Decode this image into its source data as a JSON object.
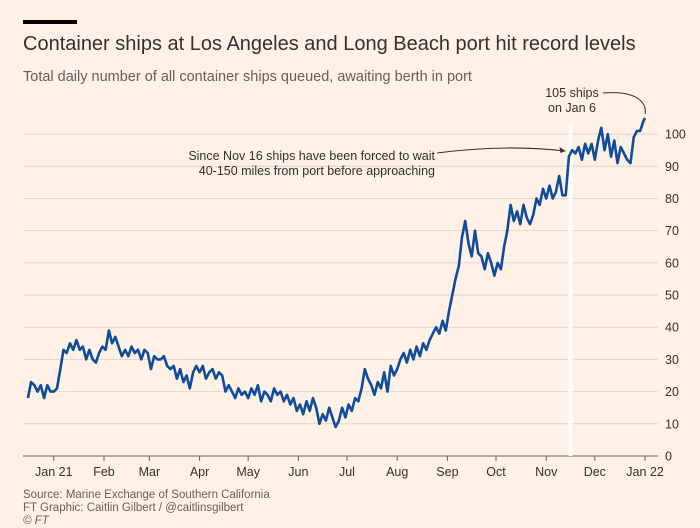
{
  "header": {
    "title": "Container ships at Los Angeles and Long Beach port hit record levels",
    "subtitle": "Total daily number of all container ships queued, awaiting berth in port"
  },
  "footer": {
    "source": "Source: Marine Exchange of Southern California",
    "graphic": "FT Graphic: Caitlin Gilbert / @caitlinsgilbert",
    "copyright": "© FT"
  },
  "colors": {
    "background": "#fff1e5",
    "line": "#0f4c9a",
    "grid": "#e0d6cc",
    "marker": "#ffffff"
  },
  "chart_data": {
    "type": "line",
    "title": "Container ships at Los Angeles and Long Beach port hit record levels",
    "subtitle": "Total daily number of all container ships queued, awaiting berth in port",
    "xlabel": "",
    "ylabel": "",
    "ylim": [
      0,
      105
    ],
    "xlim": [
      -19,
      373
    ],
    "yticks": [
      0,
      10,
      20,
      30,
      40,
      50,
      60,
      70,
      80,
      90,
      100
    ],
    "xticks": [
      {
        "label": "Jan 21",
        "day": 0
      },
      {
        "label": "Feb",
        "day": 31
      },
      {
        "label": "Mar",
        "day": 59
      },
      {
        "label": "Apr",
        "day": 90
      },
      {
        "label": "May",
        "day": 120
      },
      {
        "label": "Jun",
        "day": 151
      },
      {
        "label": "Jul",
        "day": 181
      },
      {
        "label": "Aug",
        "day": 212
      },
      {
        "label": "Sep",
        "day": 243
      },
      {
        "label": "Oct",
        "day": 273
      },
      {
        "label": "Nov",
        "day": 304
      },
      {
        "label": "Dec",
        "day": 334
      },
      {
        "label": "Jan 22",
        "day": 365
      }
    ],
    "grid": true,
    "marker_line_day": 319,
    "series": [
      {
        "name": "Container ships queued",
        "x_unit": "days since 2021-01-01",
        "points": [
          [
            -16,
            18
          ],
          [
            -14,
            23
          ],
          [
            -12,
            22
          ],
          [
            -10,
            20
          ],
          [
            -8,
            22
          ],
          [
            -6,
            18
          ],
          [
            -4,
            22
          ],
          [
            -2,
            20
          ],
          [
            0,
            20
          ],
          [
            2,
            21
          ],
          [
            4,
            27
          ],
          [
            6,
            33
          ],
          [
            8,
            32
          ],
          [
            10,
            35
          ],
          [
            12,
            33
          ],
          [
            14,
            36
          ],
          [
            16,
            33
          ],
          [
            18,
            34
          ],
          [
            20,
            30
          ],
          [
            22,
            33
          ],
          [
            24,
            30
          ],
          [
            26,
            29
          ],
          [
            28,
            32
          ],
          [
            30,
            34
          ],
          [
            32,
            33
          ],
          [
            34,
            39
          ],
          [
            36,
            35
          ],
          [
            38,
            37
          ],
          [
            40,
            34
          ],
          [
            42,
            31
          ],
          [
            44,
            33
          ],
          [
            46,
            31
          ],
          [
            48,
            34
          ],
          [
            50,
            32
          ],
          [
            52,
            33
          ],
          [
            54,
            30
          ],
          [
            56,
            33
          ],
          [
            58,
            32
          ],
          [
            60,
            27
          ],
          [
            62,
            31
          ],
          [
            64,
            30
          ],
          [
            66,
            30
          ],
          [
            68,
            31
          ],
          [
            70,
            28
          ],
          [
            72,
            27
          ],
          [
            74,
            28
          ],
          [
            76,
            24
          ],
          [
            78,
            27
          ],
          [
            80,
            23
          ],
          [
            82,
            25
          ],
          [
            84,
            21
          ],
          [
            86,
            26
          ],
          [
            88,
            28
          ],
          [
            90,
            26
          ],
          [
            92,
            28
          ],
          [
            94,
            24
          ],
          [
            96,
            26
          ],
          [
            98,
            27
          ],
          [
            100,
            24
          ],
          [
            102,
            26
          ],
          [
            104,
            25
          ],
          [
            106,
            20
          ],
          [
            108,
            22
          ],
          [
            110,
            20
          ],
          [
            112,
            18
          ],
          [
            114,
            21
          ],
          [
            116,
            19
          ],
          [
            118,
            20
          ],
          [
            120,
            18
          ],
          [
            122,
            21
          ],
          [
            124,
            19
          ],
          [
            126,
            22
          ],
          [
            128,
            17
          ],
          [
            130,
            20
          ],
          [
            132,
            19
          ],
          [
            134,
            17
          ],
          [
            136,
            21
          ],
          [
            138,
            19
          ],
          [
            140,
            20
          ],
          [
            142,
            17
          ],
          [
            144,
            19
          ],
          [
            146,
            16
          ],
          [
            148,
            18
          ],
          [
            150,
            14
          ],
          [
            152,
            16
          ],
          [
            154,
            13
          ],
          [
            156,
            17
          ],
          [
            158,
            14
          ],
          [
            160,
            18
          ],
          [
            162,
            15
          ],
          [
            164,
            10
          ],
          [
            166,
            13
          ],
          [
            168,
            11
          ],
          [
            170,
            15
          ],
          [
            172,
            12
          ],
          [
            174,
            9
          ],
          [
            176,
            11
          ],
          [
            178,
            15
          ],
          [
            180,
            12
          ],
          [
            182,
            16
          ],
          [
            184,
            14
          ],
          [
            186,
            18
          ],
          [
            188,
            17
          ],
          [
            190,
            21
          ],
          [
            192,
            27
          ],
          [
            194,
            24
          ],
          [
            196,
            22
          ],
          [
            198,
            19
          ],
          [
            200,
            23
          ],
          [
            202,
            21
          ],
          [
            204,
            26
          ],
          [
            206,
            20
          ],
          [
            208,
            28
          ],
          [
            210,
            25
          ],
          [
            212,
            27
          ],
          [
            214,
            30
          ],
          [
            216,
            32
          ],
          [
            218,
            29
          ],
          [
            220,
            33
          ],
          [
            222,
            30
          ],
          [
            224,
            34
          ],
          [
            226,
            31
          ],
          [
            228,
            35
          ],
          [
            230,
            33
          ],
          [
            232,
            36
          ],
          [
            234,
            38
          ],
          [
            236,
            40
          ],
          [
            238,
            38
          ],
          [
            240,
            42
          ],
          [
            242,
            39
          ],
          [
            244,
            45
          ],
          [
            246,
            50
          ],
          [
            248,
            55
          ],
          [
            250,
            59
          ],
          [
            252,
            68
          ],
          [
            254,
            73
          ],
          [
            256,
            66
          ],
          [
            258,
            62
          ],
          [
            260,
            70
          ],
          [
            262,
            63
          ],
          [
            264,
            62
          ],
          [
            266,
            58
          ],
          [
            268,
            63
          ],
          [
            270,
            60
          ],
          [
            272,
            56
          ],
          [
            274,
            60
          ],
          [
            276,
            58
          ],
          [
            278,
            65
          ],
          [
            280,
            70
          ],
          [
            282,
            78
          ],
          [
            284,
            73
          ],
          [
            286,
            76
          ],
          [
            288,
            72
          ],
          [
            290,
            78
          ],
          [
            292,
            74
          ],
          [
            294,
            72
          ],
          [
            296,
            75
          ],
          [
            298,
            80
          ],
          [
            300,
            78
          ],
          [
            302,
            83
          ],
          [
            304,
            80
          ],
          [
            306,
            84
          ],
          [
            308,
            80
          ],
          [
            310,
            82
          ],
          [
            312,
            87
          ],
          [
            314,
            81
          ],
          [
            316,
            81
          ],
          [
            318,
            93
          ],
          [
            320,
            95
          ],
          [
            322,
            94
          ],
          [
            324,
            96
          ],
          [
            326,
            92
          ],
          [
            328,
            97
          ],
          [
            330,
            94
          ],
          [
            332,
            97
          ],
          [
            334,
            92
          ],
          [
            336,
            98
          ],
          [
            338,
            102
          ],
          [
            340,
            95
          ],
          [
            342,
            100
          ],
          [
            344,
            93
          ],
          [
            346,
            98
          ],
          [
            348,
            91
          ],
          [
            350,
            96
          ],
          [
            352,
            94
          ],
          [
            354,
            92
          ],
          [
            356,
            91
          ],
          [
            358,
            99
          ],
          [
            360,
            101
          ],
          [
            362,
            101
          ],
          [
            364,
            104
          ],
          [
            365,
            105
          ]
        ]
      }
    ],
    "annotations": [
      {
        "lines": [
          "105 ships",
          "on Jan 6"
        ],
        "day": 365,
        "value": 105
      },
      {
        "lines": [
          "Since Nov 16 ships have been forced to wait",
          "40-150 miles from port before approaching"
        ],
        "day": 319
      }
    ]
  }
}
